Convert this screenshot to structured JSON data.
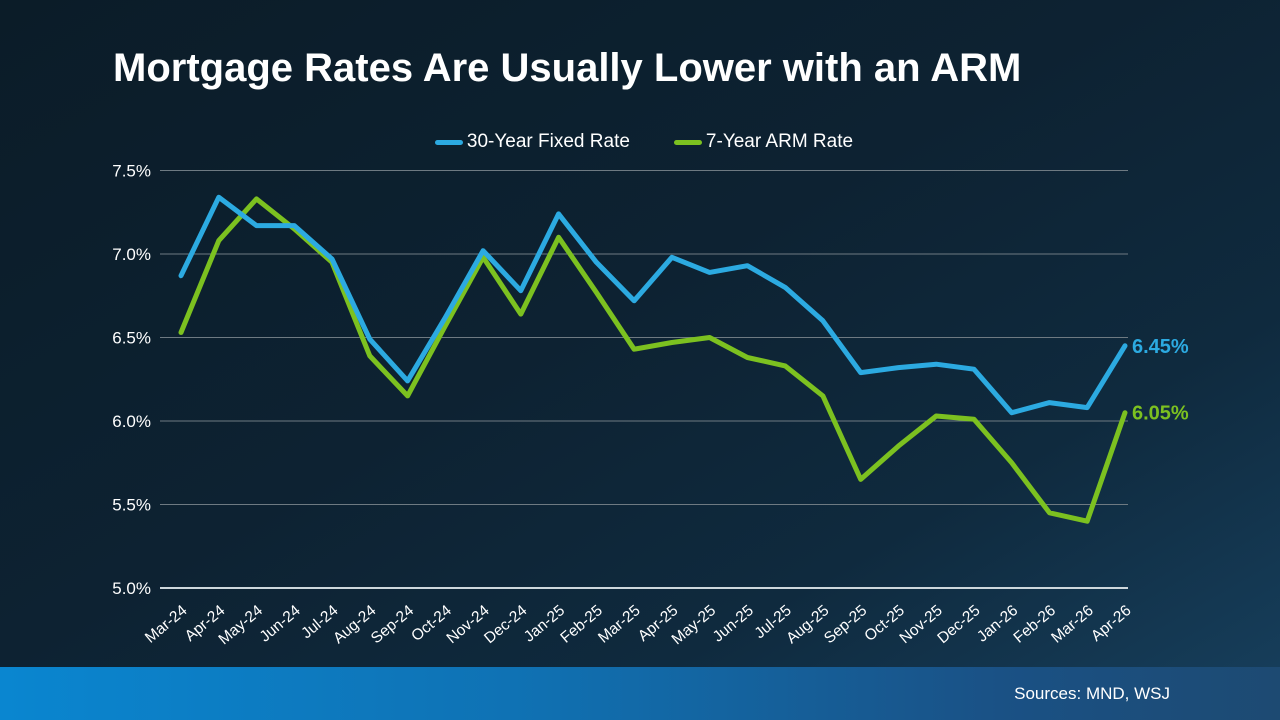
{
  "title": "Mortgage Rates Are Usually Lower with an ARM",
  "legend": [
    {
      "label": "30-Year Fixed Rate",
      "color": "#2caae1"
    },
    {
      "label": "7-Year ARM Rate",
      "color": "#7cc120"
    }
  ],
  "footer": {
    "sources": "Sources: MND, WSJ"
  },
  "chart_data": {
    "type": "line",
    "title": "Mortgage Rates Are Usually Lower with an ARM",
    "xlabel": "",
    "ylabel": "",
    "ylim": [
      5.0,
      7.5
    ],
    "grid": true,
    "legend_position": "top",
    "ytick_values": [
      7.5,
      7.0,
      6.5,
      6.0,
      5.5,
      5.0
    ],
    "ytick_labels": [
      "7.5%",
      "7.0%",
      "6.5%",
      "6.0%",
      "5.5%",
      "5.0%"
    ],
    "categories": [
      "Mar-24",
      "Apr-24",
      "May-24",
      "Jun-24",
      "Jul-24",
      "Aug-24",
      "Sep-24",
      "Oct-24",
      "Nov-24",
      "Dec-24",
      "Jan-25",
      "Feb-25",
      "Mar-25",
      "Apr-25",
      "May-25",
      "Jun-25",
      "Jul-25",
      "Aug-25",
      "Sep-25",
      "Oct-25",
      "Nov-25",
      "Dec-25",
      "Jan-26",
      "Feb-26",
      "Mar-26",
      "Apr-26"
    ],
    "series": [
      {
        "name": "30-Year Fixed Rate",
        "color": "#2caae1",
        "end_label": "6.45%",
        "values": [
          6.87,
          7.34,
          7.17,
          7.17,
          6.97,
          6.49,
          6.24,
          6.62,
          7.02,
          6.78,
          7.24,
          6.95,
          6.72,
          6.98,
          6.89,
          6.93,
          6.8,
          6.6,
          6.29,
          6.32,
          6.34,
          6.31,
          6.05,
          6.11,
          6.08,
          6.45
        ]
      },
      {
        "name": "7-Year ARM Rate",
        "color": "#7cc120",
        "end_label": "6.05%",
        "values": [
          6.53,
          7.08,
          7.33,
          7.15,
          6.95,
          6.39,
          6.15,
          6.57,
          6.98,
          6.64,
          7.1,
          6.77,
          6.43,
          6.47,
          6.5,
          6.38,
          6.33,
          6.15,
          5.65,
          5.85,
          6.03,
          6.01,
          5.75,
          5.45,
          5.4,
          6.05
        ]
      }
    ]
  }
}
